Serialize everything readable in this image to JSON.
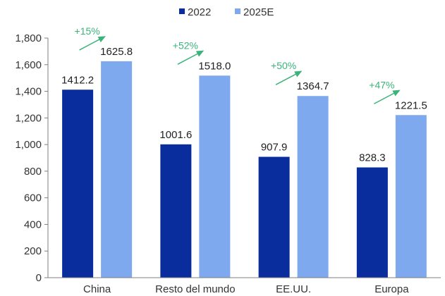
{
  "chart_data": {
    "type": "bar",
    "categories": [
      "China",
      "Resto del mundo",
      "EE.UU.",
      "Europa"
    ],
    "series": [
      {
        "name": "2022",
        "values": [
          1412.2,
          1001.6,
          907.9,
          828.3
        ],
        "color": "#0a2d9e"
      },
      {
        "name": "2025E",
        "values": [
          1625.8,
          1518.0,
          1364.7,
          1221.5
        ],
        "color": "#7fa9ef"
      }
    ],
    "value_labels": {
      "2022": [
        "1412.2",
        "1001.6",
        "907.9",
        "828.3"
      ],
      "2025E": [
        "1625.8",
        "1518.0",
        "1364.7",
        "1221.5"
      ]
    },
    "annotations": [
      "+15%",
      "+52%",
      "+50%",
      "+47%"
    ],
    "annotation_color": "#3bb37a",
    "ylim": [
      0,
      1800
    ],
    "yticks": [
      "0",
      "200",
      "400",
      "600",
      "800",
      "1,000",
      "1,200",
      "1,400",
      "1,600",
      "1,800"
    ],
    "ytick_values": [
      0,
      200,
      400,
      600,
      800,
      1000,
      1200,
      1400,
      1600,
      1800
    ],
    "legend_position": "top-center",
    "grid": false
  }
}
